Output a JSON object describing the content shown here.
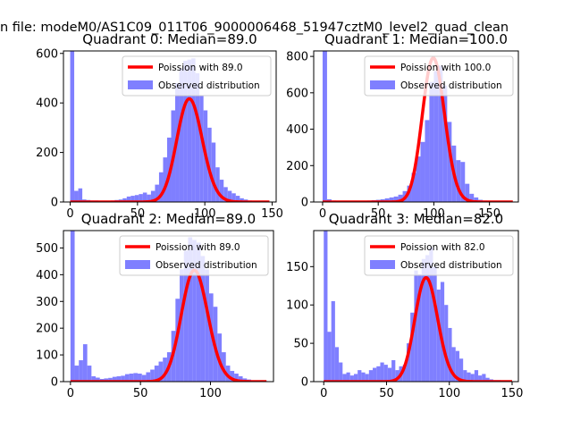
{
  "figure": {
    "suptitle": "n file: modeM0/AS1C09_011T06_9000006468_51947cztM0_level2_quad_clean",
    "hist_color": "#7f7fff",
    "curve_color": "#ff0000"
  },
  "chart_data": [
    {
      "type": "bar",
      "title": "Quadrant 0: Median=89.0",
      "xlim": [
        -5,
        153
      ],
      "ylim": [
        0,
        610
      ],
      "xticks": [
        0,
        50,
        100,
        150
      ],
      "yticks": [
        0,
        200,
        400,
        600
      ],
      "legend": {
        "position": "top-right",
        "curve_label": "Poission with 89.0",
        "hist_label": "Observed distribution"
      },
      "bin_width": 3,
      "bins_x": [
        0,
        3,
        6,
        9,
        12,
        15,
        18,
        21,
        24,
        27,
        30,
        33,
        36,
        39,
        42,
        45,
        48,
        51,
        54,
        57,
        60,
        63,
        66,
        69,
        72,
        75,
        78,
        81,
        84,
        87,
        90,
        93,
        96,
        99,
        102,
        105,
        108,
        111,
        114,
        117,
        120,
        123,
        126,
        129,
        132,
        135,
        138,
        141
      ],
      "bins_y": [
        610,
        45,
        55,
        10,
        8,
        6,
        6,
        5,
        5,
        4,
        6,
        8,
        10,
        15,
        22,
        25,
        28,
        32,
        38,
        30,
        45,
        70,
        120,
        180,
        260,
        370,
        480,
        540,
        570,
        575,
        580,
        520,
        430,
        370,
        300,
        240,
        140,
        90,
        60,
        45,
        35,
        25,
        15,
        10,
        6,
        5,
        3,
        2
      ],
      "curve": {
        "mu": 89,
        "scale": 9860
      }
    },
    {
      "type": "bar",
      "title": "Quadrant 1: Median=100.0",
      "xlim": [
        -8,
        176
      ],
      "ylim": [
        0,
        830
      ],
      "xticks": [
        0,
        50,
        100,
        150
      ],
      "yticks": [
        0,
        200,
        400,
        600,
        800
      ],
      "legend": {
        "position": "top-right",
        "curve_label": "Poission with 100.0",
        "hist_label": "Observed distribution"
      },
      "bin_width": 4,
      "bins_x": [
        0,
        4,
        8,
        12,
        16,
        20,
        24,
        28,
        32,
        36,
        40,
        44,
        48,
        52,
        56,
        60,
        64,
        68,
        72,
        76,
        80,
        84,
        88,
        92,
        96,
        100,
        104,
        108,
        112,
        116,
        120,
        124,
        128,
        132,
        136,
        140,
        144,
        148,
        152,
        156,
        160,
        164
      ],
      "bins_y": [
        830,
        15,
        8,
        6,
        5,
        5,
        4,
        4,
        5,
        6,
        8,
        10,
        12,
        15,
        20,
        25,
        30,
        40,
        60,
        90,
        160,
        250,
        330,
        450,
        660,
        720,
        750,
        640,
        440,
        310,
        230,
        220,
        100,
        45,
        25,
        12,
        8,
        5,
        4,
        3,
        2,
        2
      ],
      "curve": {
        "mu": 100,
        "scale": 19850
      }
    },
    {
      "type": "bar",
      "title": "Quadrant 2: Median=89.0",
      "xlim": [
        -5,
        145
      ],
      "ylim": [
        0,
        565
      ],
      "xticks": [
        0,
        50,
        100
      ],
      "yticks": [
        0,
        100,
        200,
        300,
        400,
        500
      ],
      "legend": {
        "position": "top-right",
        "curve_label": "Poission with 89.0",
        "hist_label": "Observed distribution"
      },
      "bin_width": 3,
      "bins_x": [
        0,
        3,
        6,
        9,
        12,
        15,
        18,
        21,
        24,
        27,
        30,
        33,
        36,
        39,
        42,
        45,
        48,
        51,
        54,
        57,
        60,
        63,
        66,
        69,
        72,
        75,
        78,
        81,
        84,
        87,
        90,
        93,
        96,
        99,
        102,
        105,
        108,
        111,
        114,
        117,
        120,
        123,
        126,
        129,
        132,
        135,
        138
      ],
      "bins_y": [
        565,
        60,
        80,
        140,
        60,
        20,
        15,
        10,
        12,
        14,
        18,
        20,
        22,
        28,
        30,
        32,
        30,
        25,
        35,
        45,
        60,
        75,
        90,
        110,
        190,
        310,
        420,
        490,
        540,
        530,
        520,
        470,
        420,
        330,
        280,
        180,
        110,
        60,
        40,
        30,
        20,
        12,
        8,
        5,
        3,
        2,
        2
      ],
      "curve": {
        "mu": 89,
        "scale": 9860
      }
    },
    {
      "type": "bar",
      "title": "Quadrant 3: Median=82.0",
      "xlim": [
        -8,
        155
      ],
      "ylim": [
        0,
        197
      ],
      "xticks": [
        0,
        50,
        100,
        150
      ],
      "yticks": [
        0,
        50,
        100,
        150
      ],
      "legend": {
        "position": "top-right",
        "curve_label": "Poission with 82.0",
        "hist_label": "Observed distribution"
      },
      "bin_width": 3,
      "bins_x": [
        0,
        3,
        6,
        9,
        12,
        15,
        18,
        21,
        24,
        27,
        30,
        33,
        36,
        39,
        42,
        45,
        48,
        51,
        54,
        57,
        60,
        63,
        66,
        69,
        72,
        75,
        78,
        81,
        84,
        87,
        90,
        93,
        96,
        99,
        102,
        105,
        108,
        111,
        114,
        117,
        120,
        123,
        126,
        129,
        132,
        135,
        138,
        141
      ],
      "bins_y": [
        197,
        65,
        105,
        45,
        25,
        10,
        12,
        8,
        10,
        15,
        12,
        10,
        15,
        18,
        20,
        25,
        22,
        18,
        28,
        15,
        20,
        22,
        50,
        90,
        145,
        140,
        160,
        165,
        175,
        150,
        120,
        130,
        100,
        70,
        45,
        40,
        30,
        15,
        12,
        10,
        15,
        8,
        10,
        5,
        3,
        2,
        2,
        1
      ],
      "curve": {
        "mu": 82,
        "scale": 3080
      }
    }
  ]
}
